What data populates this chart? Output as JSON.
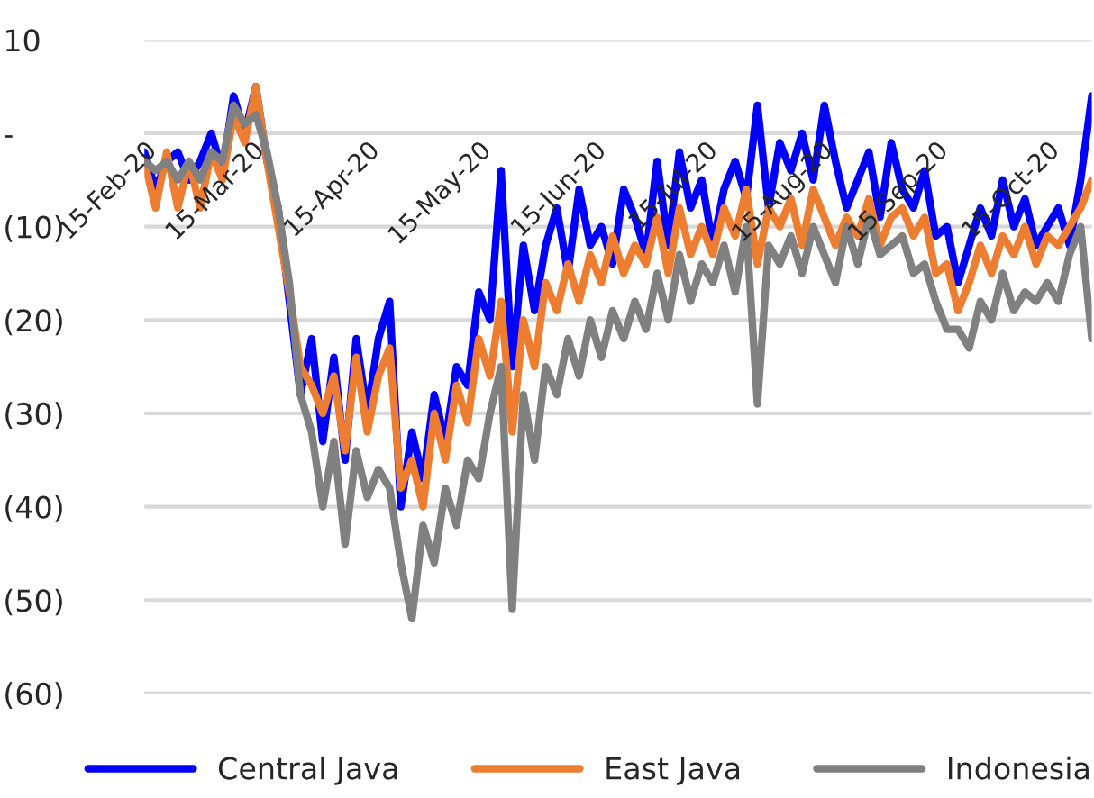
{
  "chart_data": {
    "type": "line",
    "x": [
      "2020-02-15",
      "2020-02-18",
      "2020-02-21",
      "2020-02-24",
      "2020-02-27",
      "2020-03-01",
      "2020-03-04",
      "2020-03-07",
      "2020-03-10",
      "2020-03-13",
      "2020-03-16",
      "2020-03-19",
      "2020-03-22",
      "2020-03-25",
      "2020-03-28",
      "2020-03-31",
      "2020-04-03",
      "2020-04-06",
      "2020-04-09",
      "2020-04-12",
      "2020-04-15",
      "2020-04-18",
      "2020-04-21",
      "2020-04-24",
      "2020-04-27",
      "2020-04-30",
      "2020-05-03",
      "2020-05-06",
      "2020-05-09",
      "2020-05-12",
      "2020-05-15",
      "2020-05-18",
      "2020-05-21",
      "2020-05-24",
      "2020-05-27",
      "2020-05-30",
      "2020-06-02",
      "2020-06-05",
      "2020-06-08",
      "2020-06-11",
      "2020-06-14",
      "2020-06-17",
      "2020-06-20",
      "2020-06-23",
      "2020-06-26",
      "2020-06-29",
      "2020-07-02",
      "2020-07-05",
      "2020-07-08",
      "2020-07-11",
      "2020-07-14",
      "2020-07-17",
      "2020-07-20",
      "2020-07-23",
      "2020-07-26",
      "2020-07-29",
      "2020-08-01",
      "2020-08-04",
      "2020-08-07",
      "2020-08-10",
      "2020-08-13",
      "2020-08-16",
      "2020-08-19",
      "2020-08-22",
      "2020-08-25",
      "2020-08-28",
      "2020-08-31",
      "2020-09-03",
      "2020-09-06",
      "2020-09-09",
      "2020-09-12",
      "2020-09-15",
      "2020-09-18",
      "2020-09-21",
      "2020-09-24",
      "2020-09-27",
      "2020-09-30",
      "2020-10-03",
      "2020-10-06",
      "2020-10-09",
      "2020-10-12",
      "2020-10-15",
      "2020-10-18",
      "2020-10-21",
      "2020-10-24",
      "2020-10-27"
    ],
    "series": [
      {
        "name": "Central Java",
        "color": "#0000ff",
        "values": [
          -2,
          -6,
          -3,
          -2,
          -5,
          -3,
          0,
          -4,
          4,
          0,
          5,
          -3,
          -8,
          -18,
          -28,
          -22,
          -33,
          -24,
          -35,
          -22,
          -30,
          -22,
          -18,
          -40,
          -32,
          -37,
          -28,
          -33,
          -25,
          -27,
          -17,
          -20,
          -4,
          -25,
          -12,
          -19,
          -12,
          -8,
          -15,
          -6,
          -12,
          -10,
          -14,
          -6,
          -9,
          -13,
          -3,
          -12,
          -2,
          -8,
          -5,
          -12,
          -6,
          -3,
          -7,
          3,
          -8,
          -1,
          -4,
          0,
          -5,
          3,
          -3,
          -8,
          -5,
          -2,
          -9,
          -1,
          -6,
          -8,
          -4,
          -11,
          -10,
          -16,
          -12,
          -8,
          -11,
          -5,
          -10,
          -7,
          -12,
          -10,
          -8,
          -12,
          -5,
          4
        ]
      },
      {
        "name": "East Java",
        "color": "#ed7d31",
        "values": [
          -3,
          -8,
          -2,
          -8,
          -3,
          -8,
          -2,
          -5,
          2,
          -1,
          5,
          -3,
          -10,
          -17,
          -25,
          -27,
          -30,
          -26,
          -34,
          -24,
          -32,
          -26,
          -23,
          -38,
          -35,
          -40,
          -30,
          -35,
          -27,
          -31,
          -22,
          -26,
          -18,
          -32,
          -20,
          -25,
          -16,
          -19,
          -14,
          -18,
          -13,
          -16,
          -11,
          -15,
          -12,
          -14,
          -9,
          -15,
          -8,
          -13,
          -10,
          -13,
          -8,
          -11,
          -6,
          -14,
          -8,
          -10,
          -7,
          -12,
          -6,
          -9,
          -12,
          -9,
          -11,
          -7,
          -12,
          -9,
          -8,
          -11,
          -9,
          -15,
          -14,
          -19,
          -16,
          -12,
          -15,
          -11,
          -13,
          -10,
          -14,
          -11,
          -12,
          -10,
          -8,
          -5
        ]
      },
      {
        "name": "Indonesia",
        "color": "#808080",
        "values": [
          -3,
          -4,
          -3,
          -5,
          -3,
          -5,
          -2,
          -3,
          3,
          1,
          2,
          -2,
          -8,
          -16,
          -28,
          -32,
          -40,
          -33,
          -44,
          -34,
          -39,
          -36,
          -38,
          -46,
          -52,
          -42,
          -46,
          -38,
          -42,
          -35,
          -37,
          -30,
          -25,
          -51,
          -28,
          -35,
          -25,
          -28,
          -22,
          -26,
          -20,
          -24,
          -19,
          -22,
          -18,
          -21,
          -15,
          -20,
          -13,
          -18,
          -14,
          -16,
          -12,
          -17,
          -10,
          -29,
          -12,
          -14,
          -11,
          -15,
          -10,
          -13,
          -16,
          -10,
          -14,
          -9,
          -13,
          -12,
          -11,
          -15,
          -14,
          -18,
          -21,
          -21,
          -23,
          -18,
          -20,
          -15,
          -19,
          -17,
          -18,
          -16,
          -18,
          -13,
          -10,
          -22
        ]
      }
    ],
    "xlim": [
      "2020-02-15",
      "2020-10-27"
    ],
    "xticks": [
      {
        "value": "2020-02-15",
        "label": "15-Feb-20"
      },
      {
        "value": "2020-03-15",
        "label": "15-Mar-20"
      },
      {
        "value": "2020-04-15",
        "label": "15-Apr-20"
      },
      {
        "value": "2020-05-15",
        "label": "15-May-20"
      },
      {
        "value": "2020-06-15",
        "label": "15-Jun-20"
      },
      {
        "value": "2020-07-15",
        "label": "15-Jul-20"
      },
      {
        "value": "2020-08-15",
        "label": "15-Aug-20"
      },
      {
        "value": "2020-09-15",
        "label": "15-Sep-20"
      },
      {
        "value": "2020-10-15",
        "label": "15-Oct-20"
      }
    ],
    "ylim": [
      -60,
      10
    ],
    "yticks": [
      10,
      {
        "value": 0,
        "label": "-"
      },
      {
        "value": -10,
        "label": "(10)"
      },
      {
        "value": -20,
        "label": "(20)"
      },
      {
        "value": -30,
        "label": "(30)"
      },
      {
        "value": -40,
        "label": "(40)"
      },
      {
        "value": -50,
        "label": "(50)"
      },
      {
        "value": -60,
        "label": "(60)"
      }
    ],
    "grid": "y",
    "legend": "bottom",
    "marker": "none",
    "line_style": "solid"
  }
}
